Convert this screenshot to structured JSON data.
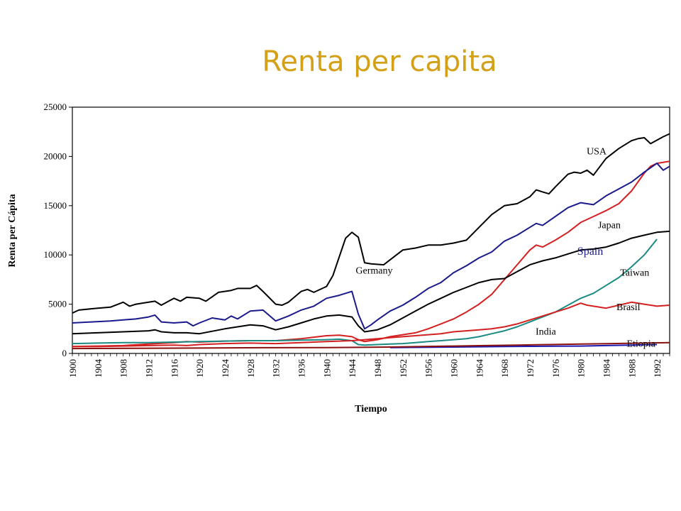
{
  "chart_data": {
    "type": "line",
    "title": "Renta per capita",
    "xlabel": "Tiempo",
    "ylabel": "Renta per Cápita",
    "xlim": [
      1900,
      1994
    ],
    "ylim": [
      0,
      25000
    ],
    "yticks": [
      "0",
      "5000",
      "10000",
      "15000",
      "20000",
      "25000"
    ],
    "xticks": [
      "1900",
      "1904",
      "1908",
      "1912",
      "1916",
      "1920",
      "1924",
      "1928",
      "1932",
      "1936",
      "1940",
      "1944",
      "1948",
      "1952",
      "1956",
      "1960",
      "1964",
      "1968",
      "1972",
      "1976",
      "1980",
      "1984",
      "1988",
      "1992"
    ],
    "colors": {
      "title": "#D4A017",
      "spain_label": "#1a1a8c"
    },
    "series": [
      {
        "name": "USA",
        "color": "#000000",
        "x": [
          1900,
          1901,
          1904,
          1906,
          1908,
          1909,
          1910,
          1912,
          1913,
          1914,
          1916,
          1917,
          1918,
          1920,
          1921,
          1923,
          1925,
          1926,
          1928,
          1929,
          1930,
          1932,
          1933,
          1934,
          1936,
          1937,
          1938,
          1940,
          1941,
          1942,
          1943,
          1944,
          1945,
          1946,
          1947,
          1949,
          1950,
          1952,
          1953,
          1954,
          1956,
          1958,
          1960,
          1962,
          1964,
          1966,
          1968,
          1970,
          1972,
          1973,
          1974,
          1975,
          1976,
          1978,
          1979,
          1980,
          1981,
          1982,
          1984,
          1986,
          1988,
          1989,
          1990,
          1991,
          1993,
          1994
        ],
        "y": [
          4100,
          4400,
          4600,
          4700,
          5200,
          4800,
          5000,
          5200,
          5300,
          4900,
          5600,
          5300,
          5700,
          5600,
          5300,
          6200,
          6400,
          6600,
          6600,
          6900,
          6300,
          5000,
          4900,
          5200,
          6300,
          6500,
          6200,
          6800,
          7900,
          9800,
          11700,
          12300,
          11800,
          9200,
          9100,
          9000,
          9500,
          10500,
          10600,
          10700,
          11000,
          11000,
          11200,
          11500,
          12800,
          14100,
          15000,
          15200,
          15900,
          16600,
          16400,
          16200,
          16900,
          18200,
          18400,
          18300,
          18600,
          18100,
          19800,
          20800,
          21600,
          21800,
          21900,
          21300,
          22000,
          22300
        ]
      },
      {
        "name": "Japan",
        "color": "#d42020",
        "x": [
          1900,
          1904,
          1908,
          1912,
          1916,
          1918,
          1920,
          1924,
          1928,
          1932,
          1936,
          1940,
          1942,
          1944,
          1945,
          1946,
          1948,
          1950,
          1952,
          1954,
          1956,
          1958,
          1960,
          1962,
          1964,
          1966,
          1968,
          1970,
          1972,
          1973,
          1974,
          1976,
          1978,
          1980,
          1982,
          1984,
          1986,
          1988,
          1990,
          1991,
          1992,
          1994
        ],
        "y": [
          700,
          750,
          800,
          950,
          1100,
          1200,
          1150,
          1250,
          1300,
          1300,
          1500,
          1800,
          1850,
          1700,
          1400,
          1200,
          1400,
          1700,
          1900,
          2100,
          2500,
          3000,
          3500,
          4200,
          5000,
          6000,
          7500,
          9000,
          10500,
          11000,
          10800,
          11500,
          12300,
          13300,
          13900,
          14500,
          15200,
          16500,
          18300,
          19000,
          19300,
          19500
        ]
      },
      {
        "name": "Germany",
        "color": "#000000",
        "x": [
          1900,
          1904,
          1908,
          1912,
          1913,
          1914,
          1916,
          1918,
          1920,
          1924,
          1928,
          1930,
          1932,
          1934,
          1936,
          1938,
          1940,
          1942,
          1944,
          1945,
          1946,
          1948,
          1950,
          1952,
          1954,
          1956,
          1958,
          1960,
          1962,
          1964,
          1966,
          1968,
          1970,
          1972,
          1974,
          1976,
          1978,
          1980,
          1982,
          1984,
          1986,
          1988,
          1990,
          1992,
          1994
        ],
        "y": [
          2000,
          2100,
          2200,
          2300,
          2400,
          2200,
          2100,
          2100,
          2000,
          2500,
          2900,
          2800,
          2400,
          2700,
          3100,
          3500,
          3800,
          3900,
          3700,
          2800,
          2200,
          2400,
          2900,
          3600,
          4300,
          5000,
          5600,
          6200,
          6700,
          7200,
          7500,
          7600,
          8300,
          9000,
          9400,
          9700,
          10100,
          10500,
          10600,
          10800,
          11200,
          11700,
          12000,
          12300,
          12400
        ]
      },
      {
        "name": "Spain",
        "color": "#1a1a8c",
        "x": [
          1900,
          1903,
          1906,
          1908,
          1910,
          1912,
          1913,
          1914,
          1916,
          1918,
          1919,
          1920,
          1922,
          1924,
          1925,
          1926,
          1928,
          1930,
          1932,
          1934,
          1936,
          1938,
          1940,
          1942,
          1944,
          1945,
          1946,
          1947,
          1948,
          1950,
          1952,
          1954,
          1956,
          1958,
          1960,
          1962,
          1964,
          1966,
          1968,
          1970,
          1972,
          1973,
          1974,
          1976,
          1978,
          1980,
          1982,
          1984,
          1986,
          1988,
          1990,
          1992,
          1993,
          1994
        ],
        "y": [
          3100,
          3200,
          3300,
          3400,
          3500,
          3700,
          3900,
          3200,
          3100,
          3200,
          2800,
          3100,
          3600,
          3400,
          3800,
          3500,
          4300,
          4400,
          3300,
          3800,
          4400,
          4800,
          5600,
          5900,
          6300,
          4000,
          2500,
          2900,
          3400,
          4300,
          4900,
          5700,
          6600,
          7200,
          8200,
          8900,
          9700,
          10300,
          11400,
          12000,
          12800,
          13200,
          13000,
          13900,
          14800,
          15300,
          15100,
          16000,
          16700,
          17400,
          18400,
          19300,
          18600,
          19000
        ]
      },
      {
        "name": "Taiwan",
        "color": "#1a8a82",
        "x": [
          1900,
          1904,
          1908,
          1912,
          1916,
          1920,
          1924,
          1928,
          1932,
          1936,
          1940,
          1942,
          1944,
          1945,
          1946,
          1948,
          1950,
          1952,
          1954,
          1956,
          1958,
          1960,
          1962,
          1964,
          1966,
          1968,
          1970,
          1972,
          1974,
          1976,
          1978,
          1980,
          1982,
          1984,
          1986,
          1988,
          1990,
          1992
        ],
        "y": [
          1000,
          1050,
          1100,
          1100,
          1150,
          1200,
          1250,
          1300,
          1300,
          1350,
          1400,
          1450,
          1300,
          900,
          850,
          900,
          950,
          1000,
          1100,
          1200,
          1300,
          1400,
          1500,
          1700,
          2000,
          2300,
          2700,
          3200,
          3700,
          4200,
          4900,
          5600,
          6100,
          6900,
          7700,
          8800,
          10000,
          11600
        ]
      },
      {
        "name": "Brasil",
        "color": "#d42020",
        "x": [
          1900,
          1904,
          1908,
          1912,
          1916,
          1918,
          1920,
          1924,
          1928,
          1932,
          1936,
          1940,
          1944,
          1946,
          1948,
          1950,
          1952,
          1954,
          1956,
          1958,
          1960,
          1962,
          1964,
          1966,
          1968,
          1970,
          1972,
          1974,
          1976,
          1978,
          1980,
          1981,
          1982,
          1984,
          1986,
          1988,
          1990,
          1992,
          1994
        ],
        "y": [
          700,
          700,
          750,
          800,
          850,
          800,
          900,
          1000,
          1050,
          1000,
          1100,
          1200,
          1300,
          1400,
          1500,
          1600,
          1700,
          1800,
          1900,
          2000,
          2200,
          2300,
          2400,
          2500,
          2700,
          3000,
          3400,
          3800,
          4200,
          4600,
          5100,
          4900,
          4800,
          4600,
          4900,
          5200,
          5000,
          4800,
          4900
        ]
      },
      {
        "name": "India",
        "color": "#1a1ab0",
        "x": [
          1950,
          1955,
          1960,
          1964,
          1968,
          1972,
          1976,
          1980,
          1984,
          1988,
          1992
        ],
        "y": [
          600,
          620,
          650,
          680,
          700,
          720,
          740,
          750,
          800,
          850,
          900
        ]
      },
      {
        "name": "Etiopia",
        "color": "#8b1010",
        "x": [
          1900,
          1910,
          1920,
          1930,
          1940,
          1950,
          1955,
          1960,
          1965,
          1970,
          1975,
          1980,
          1985,
          1990,
          1994
        ],
        "y": [
          500,
          520,
          550,
          580,
          600,
          650,
          700,
          750,
          800,
          850,
          900,
          950,
          1000,
          1050,
          1100
        ]
      }
    ],
    "labels": [
      {
        "text": "USA",
        "x": 1982.5,
        "y": 20200
      },
      {
        "text": "Japan",
        "x": 1984.5,
        "y": 12700
      },
      {
        "text": "Spain",
        "x": 1981.5,
        "y": 10000
      },
      {
        "text": "Taiwan",
        "x": 1988.5,
        "y": 7900
      },
      {
        "text": "Germany",
        "x": 1947.5,
        "y": 8100
      },
      {
        "text": "Brasil",
        "x": 1987.5,
        "y": 4400
      },
      {
        "text": "India",
        "x": 1974.5,
        "y": 1900
      },
      {
        "text": "Etiopia",
        "x": 1989.5,
        "y": 700
      }
    ]
  }
}
